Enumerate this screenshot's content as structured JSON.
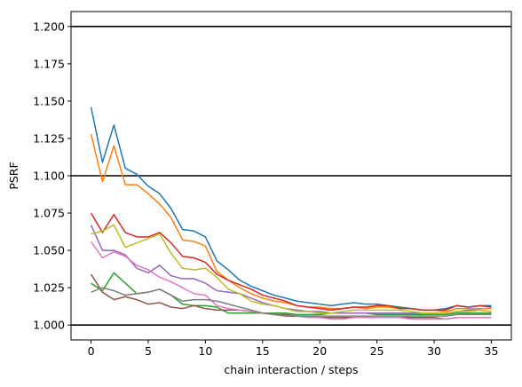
{
  "chart_data": {
    "type": "line",
    "xlabel": "chain interaction / steps",
    "ylabel": "PSRF",
    "xlim": [
      -1.75,
      36.75
    ],
    "ylim": [
      0.99,
      1.21
    ],
    "xticks": [
      0,
      5,
      10,
      15,
      20,
      25,
      30,
      35
    ],
    "xtick_labels": [
      "0",
      "5",
      "10",
      "15",
      "20",
      "25",
      "30",
      "35"
    ],
    "yticks": [
      1.0,
      1.025,
      1.05,
      1.075,
      1.1,
      1.125,
      1.15,
      1.175,
      1.2
    ],
    "ytick_labels": [
      "1.000",
      "1.025",
      "1.050",
      "1.075",
      "1.100",
      "1.125",
      "1.150",
      "1.175",
      "1.200"
    ],
    "hlines": [
      1.0,
      1.1,
      1.2
    ],
    "hline_color": "#000000",
    "grid": false,
    "x": [
      0,
      1,
      2,
      3,
      4,
      5,
      6,
      7,
      8,
      9,
      10,
      11,
      12,
      13,
      14,
      15,
      16,
      17,
      18,
      19,
      20,
      21,
      22,
      23,
      24,
      25,
      26,
      27,
      28,
      29,
      30,
      31,
      32,
      33,
      34,
      35
    ],
    "series": [
      {
        "color": "#1f77b4",
        "values": [
          1.146,
          1.109,
          1.134,
          1.105,
          1.101,
          1.093,
          1.088,
          1.078,
          1.064,
          1.063,
          1.059,
          1.043,
          1.037,
          1.03,
          1.026,
          1.023,
          1.02,
          1.018,
          1.016,
          1.015,
          1.014,
          1.013,
          1.014,
          1.015,
          1.014,
          1.014,
          1.013,
          1.012,
          1.011,
          1.01,
          1.01,
          1.011,
          1.013,
          1.012,
          1.013,
          1.013
        ]
      },
      {
        "color": "#ff7f0e",
        "values": [
          1.128,
          1.096,
          1.12,
          1.094,
          1.094,
          1.088,
          1.081,
          1.072,
          1.057,
          1.056,
          1.053,
          1.036,
          1.03,
          1.025,
          1.021,
          1.018,
          1.016,
          1.015,
          1.013,
          1.012,
          1.012,
          1.011,
          1.011,
          1.012,
          1.011,
          1.012,
          1.012,
          1.011,
          1.011,
          1.01,
          1.01,
          1.009,
          1.011,
          1.011,
          1.011,
          1.011
        ]
      },
      {
        "color": "#2ca02c",
        "values": [
          1.028,
          1.023,
          1.035,
          1.028,
          1.021,
          1.022,
          1.024,
          1.02,
          1.014,
          1.013,
          1.013,
          1.012,
          1.008,
          1.008,
          1.008,
          1.008,
          1.008,
          1.008,
          1.007,
          1.007,
          1.007,
          1.008,
          1.008,
          1.008,
          1.008,
          1.007,
          1.007,
          1.007,
          1.007,
          1.007,
          1.007,
          1.007,
          1.008,
          1.008,
          1.008,
          1.008
        ]
      },
      {
        "color": "#d62728",
        "values": [
          1.075,
          1.062,
          1.074,
          1.062,
          1.059,
          1.059,
          1.062,
          1.055,
          1.046,
          1.045,
          1.042,
          1.034,
          1.03,
          1.027,
          1.024,
          1.02,
          1.018,
          1.016,
          1.013,
          1.012,
          1.011,
          1.01,
          1.011,
          1.012,
          1.012,
          1.013,
          1.013,
          1.011,
          1.011,
          1.01,
          1.01,
          1.01,
          1.013,
          1.012,
          1.013,
          1.012
        ]
      },
      {
        "color": "#9467bd",
        "values": [
          1.067,
          1.05,
          1.05,
          1.047,
          1.038,
          1.035,
          1.04,
          1.033,
          1.031,
          1.031,
          1.028,
          1.023,
          1.022,
          1.021,
          1.018,
          1.015,
          1.013,
          1.011,
          1.01,
          1.009,
          1.009,
          1.008,
          1.008,
          1.008,
          1.008,
          1.008,
          1.008,
          1.008,
          1.008,
          1.008,
          1.008,
          1.008,
          1.009,
          1.01,
          1.01,
          1.009
        ]
      },
      {
        "color": "#8c564b",
        "values": [
          1.034,
          1.022,
          1.017,
          1.019,
          1.017,
          1.014,
          1.015,
          1.012,
          1.011,
          1.013,
          1.011,
          1.01,
          1.01,
          1.01,
          1.009,
          1.008,
          1.007,
          1.007,
          1.006,
          1.006,
          1.005,
          1.005,
          1.005,
          1.005,
          1.005,
          1.005,
          1.005,
          1.005,
          1.005,
          1.005,
          1.005,
          1.004,
          1.005,
          1.005,
          1.005,
          1.005
        ]
      },
      {
        "color": "#e377c2",
        "values": [
          1.056,
          1.045,
          1.049,
          1.046,
          1.04,
          1.037,
          1.032,
          1.029,
          1.025,
          1.021,
          1.02,
          1.013,
          1.011,
          1.01,
          1.009,
          1.008,
          1.007,
          1.006,
          1.006,
          1.005,
          1.005,
          1.004,
          1.004,
          1.005,
          1.005,
          1.005,
          1.005,
          1.005,
          1.004,
          1.004,
          1.004,
          1.004,
          1.005,
          1.005,
          1.005,
          1.005
        ]
      },
      {
        "color": "#7f7f7f",
        "values": [
          1.022,
          1.025,
          1.023,
          1.02,
          1.021,
          1.022,
          1.024,
          1.02,
          1.016,
          1.017,
          1.017,
          1.016,
          1.014,
          1.012,
          1.01,
          1.008,
          1.007,
          1.006,
          1.006,
          1.006,
          1.006,
          1.006,
          1.006,
          1.006,
          1.006,
          1.006,
          1.006,
          1.006,
          1.006,
          1.006,
          1.006,
          1.006,
          1.007,
          1.007,
          1.007,
          1.007
        ]
      },
      {
        "color": "#bcbd22",
        "values": [
          1.061,
          1.063,
          1.067,
          1.052,
          1.055,
          1.058,
          1.061,
          1.048,
          1.038,
          1.037,
          1.038,
          1.032,
          1.024,
          1.021,
          1.016,
          1.014,
          1.013,
          1.011,
          1.009,
          1.009,
          1.008,
          1.008,
          1.009,
          1.01,
          1.01,
          1.01,
          1.01,
          1.01,
          1.009,
          1.008,
          1.008,
          1.008,
          1.009,
          1.009,
          1.01,
          1.009
        ]
      }
    ]
  }
}
